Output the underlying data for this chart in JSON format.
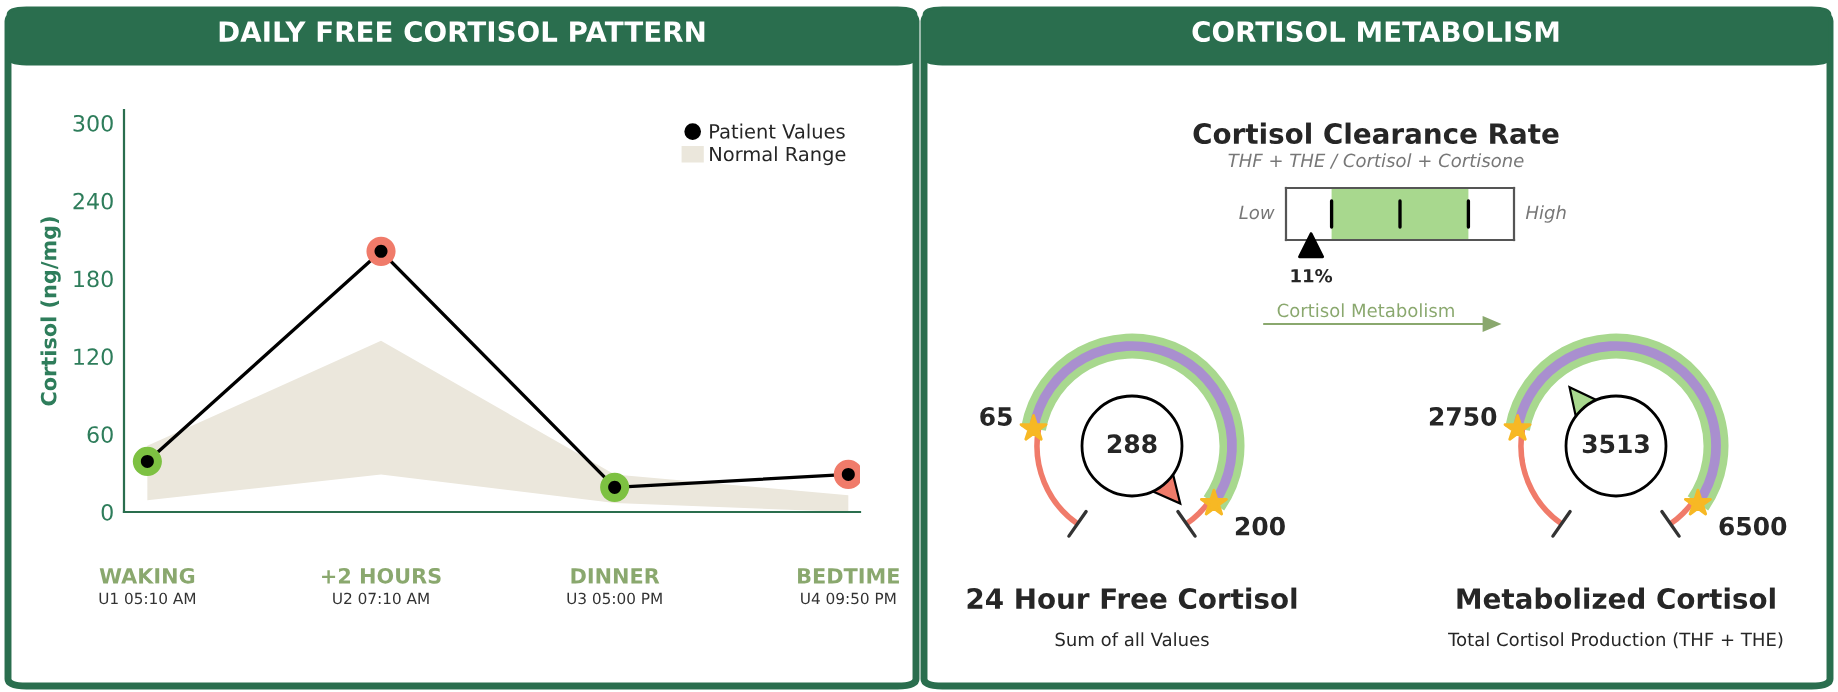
{
  "chart_data": [
    {
      "type": "line",
      "title": "DAILY FREE CORTISOL PATTERN",
      "ylabel": "Cortisol (ng/mg)",
      "categories": [
        "WAKING\nU1 05:10 AM",
        "+2 HOURS\nU2 07:10 AM",
        "DINNER\nU3 05:00 PM",
        "BEDTIME\nU4 09:50 PM"
      ],
      "series": [
        {
          "name": "Patient Values",
          "color": "#000000",
          "marker": "circle",
          "colors": [
            "#7dc142",
            "#f07b6a",
            "#7dc142",
            "#f07b6a"
          ],
          "values": [
            39,
            201,
            19,
            29
          ]
        },
        {
          "name": "Normal Range",
          "type": "area",
          "color": "#ebe7dc",
          "marker": "none",
          "lower": [
            9,
            29,
            7,
            0
          ],
          "upper": [
            51,
            132,
            29,
            13
          ],
          "values": [
            null,
            null,
            null,
            null
          ]
        }
      ],
      "ylim": [
        0,
        310
      ],
      "yticks": [
        0,
        60,
        120,
        180,
        240,
        300
      ],
      "legend": "top right"
    },
    {
      "type": "other",
      "title": "Cortisol Clearance Rate",
      "subtitle": "THF + THE / Cortisol + Cortisone",
      "values": [
        11
      ],
      "value_labels": [
        "11%"
      ],
      "annotations": [
        "CORTISOL METABOLISM",
        "Low",
        "High",
        "Cortisol Metabolism"
      ]
    },
    {
      "type": "other",
      "title": "24 Hour Free Cortisol",
      "subtitle": "Sum of all Values",
      "values": [
        288
      ],
      "value_labels": [
        "288"
      ],
      "annotations": [
        "65",
        "200"
      ]
    },
    {
      "type": "other",
      "title": "Metabolized Cortisol",
      "subtitle": "Total Cortisol Production (THF + THE)",
      "values": [
        3513
      ],
      "value_labels": [
        "3513"
      ],
      "annotations": [
        "2750",
        "6500"
      ]
    }
  ]
}
